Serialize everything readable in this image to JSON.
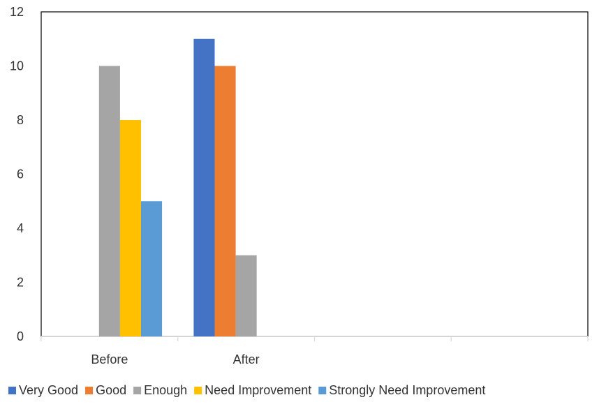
{
  "chart_data": {
    "type": "bar",
    "categories": [
      "Before",
      "After",
      "",
      ""
    ],
    "series": [
      {
        "name": "Very Good",
        "color": "#4472C4",
        "values": [
          0,
          11,
          0,
          0
        ]
      },
      {
        "name": "Good",
        "color": "#ED7D31",
        "values": [
          0,
          10,
          0,
          0
        ]
      },
      {
        "name": "Enough",
        "color": "#A5A5A5",
        "values": [
          10,
          3,
          0,
          0
        ]
      },
      {
        "name": "Need Improvement",
        "color": "#FFC000",
        "values": [
          8,
          0,
          0,
          0
        ]
      },
      {
        "name": "Strongly Need Improvement",
        "color": "#5B9BD5",
        "values": [
          5,
          0,
          0,
          0
        ]
      }
    ],
    "ylim": [
      0,
      12
    ],
    "yticks": [
      0,
      2,
      4,
      6,
      8,
      10,
      12
    ],
    "grid": false,
    "legend_position": "bottom",
    "title": "",
    "xlabel": "",
    "ylabel": ""
  }
}
